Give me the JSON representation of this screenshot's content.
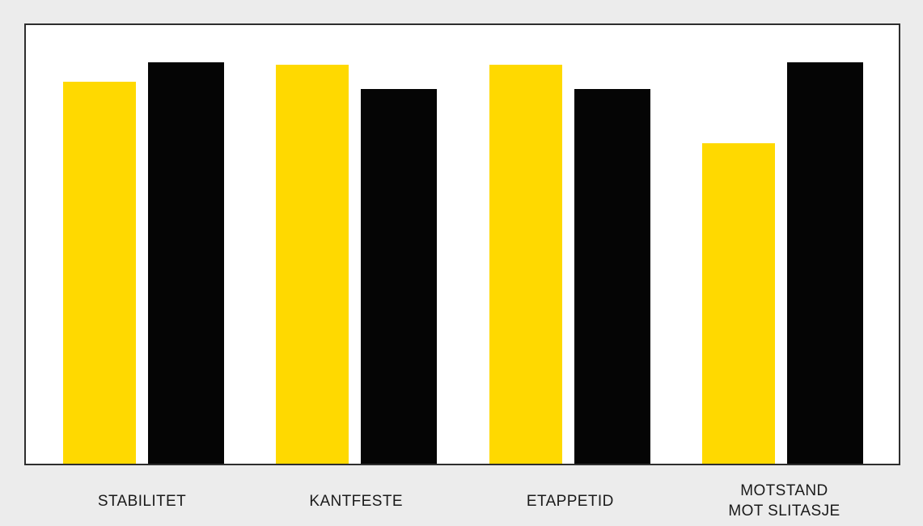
{
  "page": {
    "background_color": "#ececec"
  },
  "chart": {
    "plot_background_color": "#ffffff",
    "plot_border_color": "#2e2e2e",
    "label_text_color": "#1a1a1a"
  },
  "chart_data": {
    "type": "bar",
    "title": "",
    "categories": [
      "STABILITET",
      "KANTFESTE",
      "ETAPPETID",
      "MOTSTAND\nMOT SLITASJE"
    ],
    "series": [
      {
        "name": "yellow-bar",
        "color": "#ffd900",
        "values": [
          87,
          91,
          91,
          73
        ]
      },
      {
        "name": "black-bar",
        "color": "#050505",
        "values": [
          91.5,
          85.5,
          85.5,
          91.5
        ]
      }
    ],
    "ylim": [
      0,
      100
    ],
    "xlabel": "",
    "ylabel": "",
    "grid": false,
    "legend_position": "none",
    "value_axis_visible": false,
    "layout_hint": "grouped vertical bars, baseline at bottom border of framed white plot area, category labels below frame"
  }
}
